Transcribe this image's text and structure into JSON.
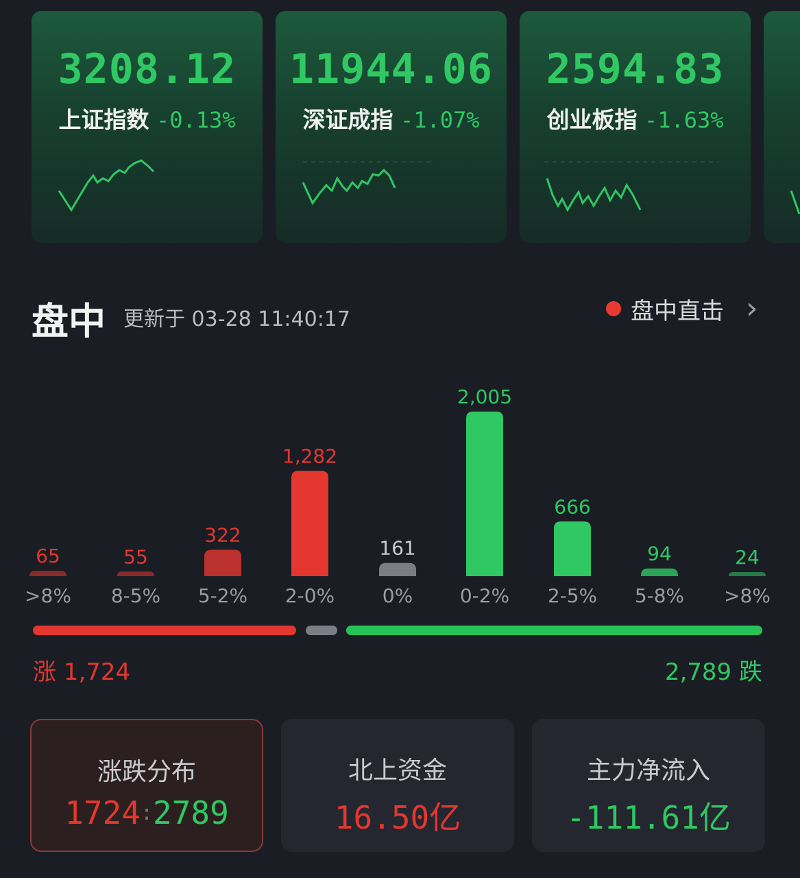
{
  "indices": [
    {
      "value": "3208.12",
      "name": "上证指数",
      "change": "-0.13%"
    },
    {
      "value": "11944.06",
      "name": "深证成指",
      "change": "-1.07%"
    },
    {
      "value": "2594.83",
      "name": "创业板指",
      "change": "-1.63%"
    }
  ],
  "header": {
    "title": "盘中",
    "updated": "更新于 03-28 11:40:17",
    "live_label": "盘中直击"
  },
  "colors": {
    "up": "#e3372f",
    "down": "#2fc863",
    "flat": "#7b7e86"
  },
  "chart_data": {
    "type": "bar",
    "categories": [
      ">8%",
      "8-5%",
      "5-2%",
      "2-0%",
      "0%",
      "0-2%",
      "2-5%",
      "5-8%",
      ">8%"
    ],
    "values": [
      65,
      55,
      322,
      1282,
      161,
      2005,
      666,
      94,
      24
    ],
    "value_labels": [
      "65",
      "55",
      "322",
      "1,282",
      "161",
      "2,005",
      "666",
      "94",
      "24"
    ],
    "direction": [
      "up",
      "up",
      "up",
      "up",
      "flat",
      "down",
      "down",
      "down",
      "down"
    ],
    "ylim": [
      0,
      2005
    ]
  },
  "summary": {
    "up_label": "涨 1,724",
    "down_label": "2,789 跌",
    "up_count": 1724,
    "flat_count": 161,
    "down_count": 2789
  },
  "stats": [
    {
      "title": "涨跌分布",
      "up": "1724",
      "separator": ":",
      "down": "2789"
    },
    {
      "title": "北上资金",
      "value": "16.50亿"
    },
    {
      "title": "主力净流入",
      "value": "-111.61亿"
    }
  ]
}
